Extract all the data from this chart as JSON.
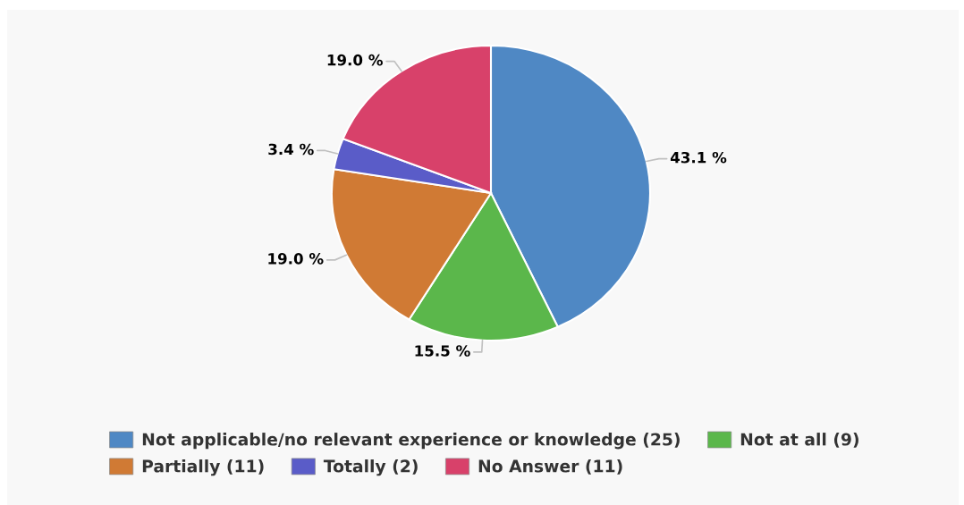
{
  "chart_data": {
    "type": "pie",
    "categories": [
      "Not applicable/no relevant experience or knowledge (25)",
      "Not at all (9)",
      "Partially (11)",
      "Totally (2)",
      "No Answer (11)"
    ],
    "values": [
      43.1,
      15.5,
      19.0,
      3.4,
      19.0
    ],
    "colors": [
      "#4f88c4",
      "#5bb74b",
      "#d07a34",
      "#5a5cc8",
      "#d8416a"
    ],
    "value_labels": [
      "43.1 %",
      "15.5 %",
      "19.0 %",
      "3.4 %",
      "19.0 %"
    ],
    "legend": "bottom"
  }
}
